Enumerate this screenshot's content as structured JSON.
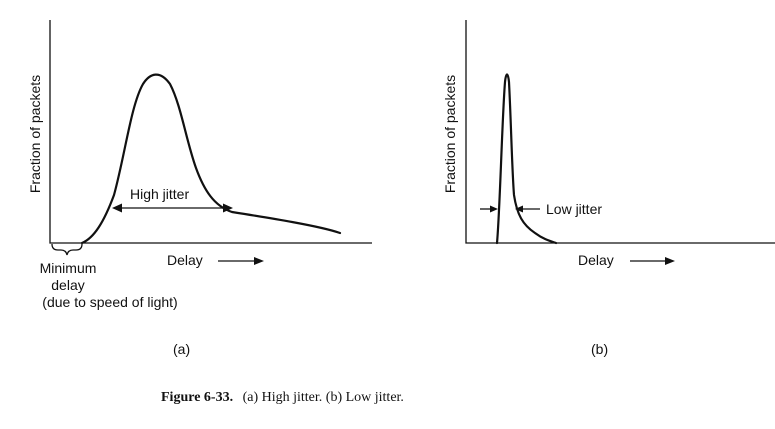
{
  "panel_a": {
    "ylabel": "Fraction of packets",
    "xlabel": "Delay",
    "annotation": "High jitter",
    "min_delay_label": [
      "Minimum",
      "delay",
      "(due to speed of light)"
    ],
    "caption": "(a)"
  },
  "panel_b": {
    "ylabel": "Fraction of packets",
    "xlabel": "Delay",
    "annotation": "Low jitter",
    "caption": "(b)"
  },
  "figure_caption": {
    "number": "Figure 6-33.",
    "text": "(a) High jitter. (b) Low jitter."
  }
}
